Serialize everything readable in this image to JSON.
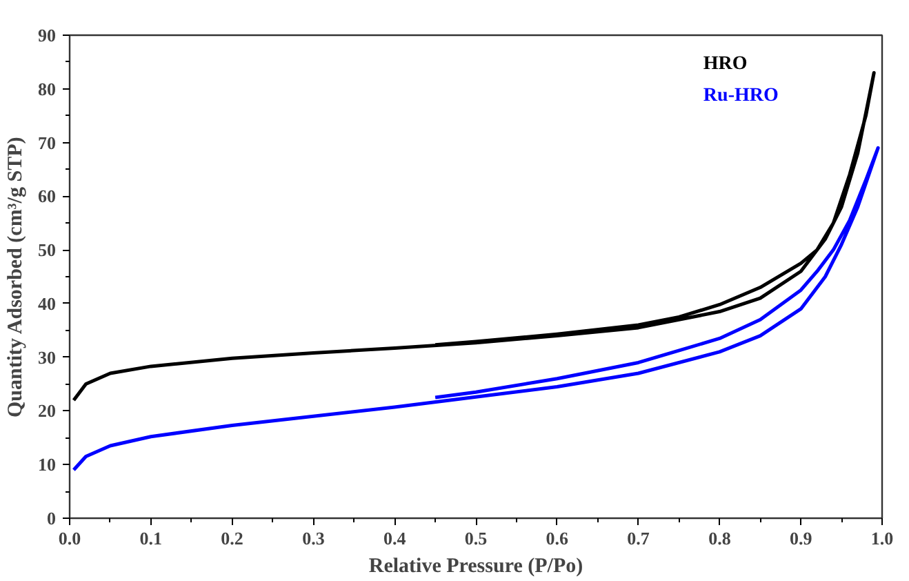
{
  "chart_data": {
    "type": "line",
    "xlabel": "Relative Pressure (P/Po)",
    "ylabel": "Quantity Adsorbed (cm³/g STP)",
    "xlim": [
      0,
      1
    ],
    "ylim": [
      0,
      90
    ],
    "xticks": [
      {
        "value": 0,
        "label": "0.0"
      },
      0.1,
      0.2,
      0.3,
      0.4,
      0.5,
      0.6,
      0.7,
      0.8,
      0.9,
      {
        "value": 1,
        "label": "1.0"
      }
    ],
    "yticks": [
      0,
      10,
      20,
      30,
      40,
      50,
      60,
      70,
      80,
      90
    ],
    "grid": false,
    "legend": "top right",
    "line_style": "solid",
    "series": [
      {
        "name": "HRO",
        "color": "#000000",
        "x": [
          0.005,
          0.02,
          0.05,
          0.1,
          0.2,
          0.3,
          0.4,
          0.5,
          0.6,
          0.7,
          0.8,
          0.85,
          0.9,
          0.93,
          0.95,
          0.97,
          0.99,
          0.98,
          0.96,
          0.94,
          0.92,
          0.9,
          0.85,
          0.8,
          0.75,
          0.7,
          0.6,
          0.5,
          0.45
        ],
        "values": [
          22,
          25,
          27,
          28.3,
          29.8,
          30.8,
          31.7,
          32.7,
          34,
          35.5,
          38.5,
          41,
          46,
          52,
          58,
          68,
          83,
          75,
          64,
          55,
          50,
          47.5,
          43,
          39.8,
          37.5,
          36,
          34.3,
          32.9,
          32.3
        ]
      },
      {
        "name": "Ru-HRO",
        "color": "#0000ff",
        "x": [
          0.005,
          0.02,
          0.05,
          0.1,
          0.2,
          0.3,
          0.4,
          0.5,
          0.6,
          0.7,
          0.8,
          0.85,
          0.9,
          0.93,
          0.95,
          0.97,
          0.995,
          0.98,
          0.96,
          0.94,
          0.92,
          0.9,
          0.85,
          0.8,
          0.7,
          0.6,
          0.5,
          0.45
        ],
        "values": [
          9,
          11.5,
          13.5,
          15.2,
          17.3,
          19,
          20.7,
          22.6,
          24.5,
          27,
          31,
          34,
          39,
          45,
          51,
          58,
          69,
          63,
          55.5,
          50,
          46,
          42.5,
          37,
          33.5,
          29,
          26,
          23.5,
          22.5
        ]
      }
    ]
  }
}
